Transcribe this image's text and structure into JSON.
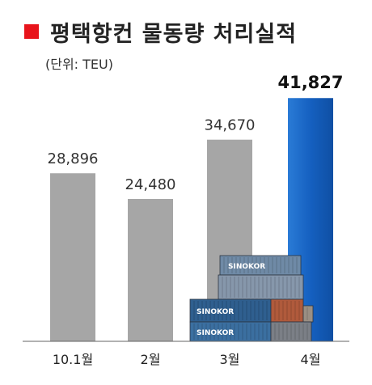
{
  "title": "평택항컨 물동량 처리실적",
  "unit": "(단위: TEU)",
  "colors": {
    "accent": "#e8141b",
    "bar": "#a6a6a6",
    "highlight": "#1f6fc6"
  },
  "chart_data": {
    "type": "bar",
    "title": "평택항컨 물동량 처리실적",
    "ylabel": "(단위: TEU)",
    "categories": [
      "10.1월",
      "2월",
      "3월",
      "4월"
    ],
    "values": [
      28896,
      24480,
      34670,
      41827
    ],
    "value_labels": [
      "28,896",
      "24,480",
      "34,670",
      "41,827"
    ],
    "highlight_index": 3,
    "ylim": [
      0,
      42000
    ],
    "grid": false,
    "legend": "none"
  },
  "illustration": {
    "container_text": "SINOKOR"
  }
}
